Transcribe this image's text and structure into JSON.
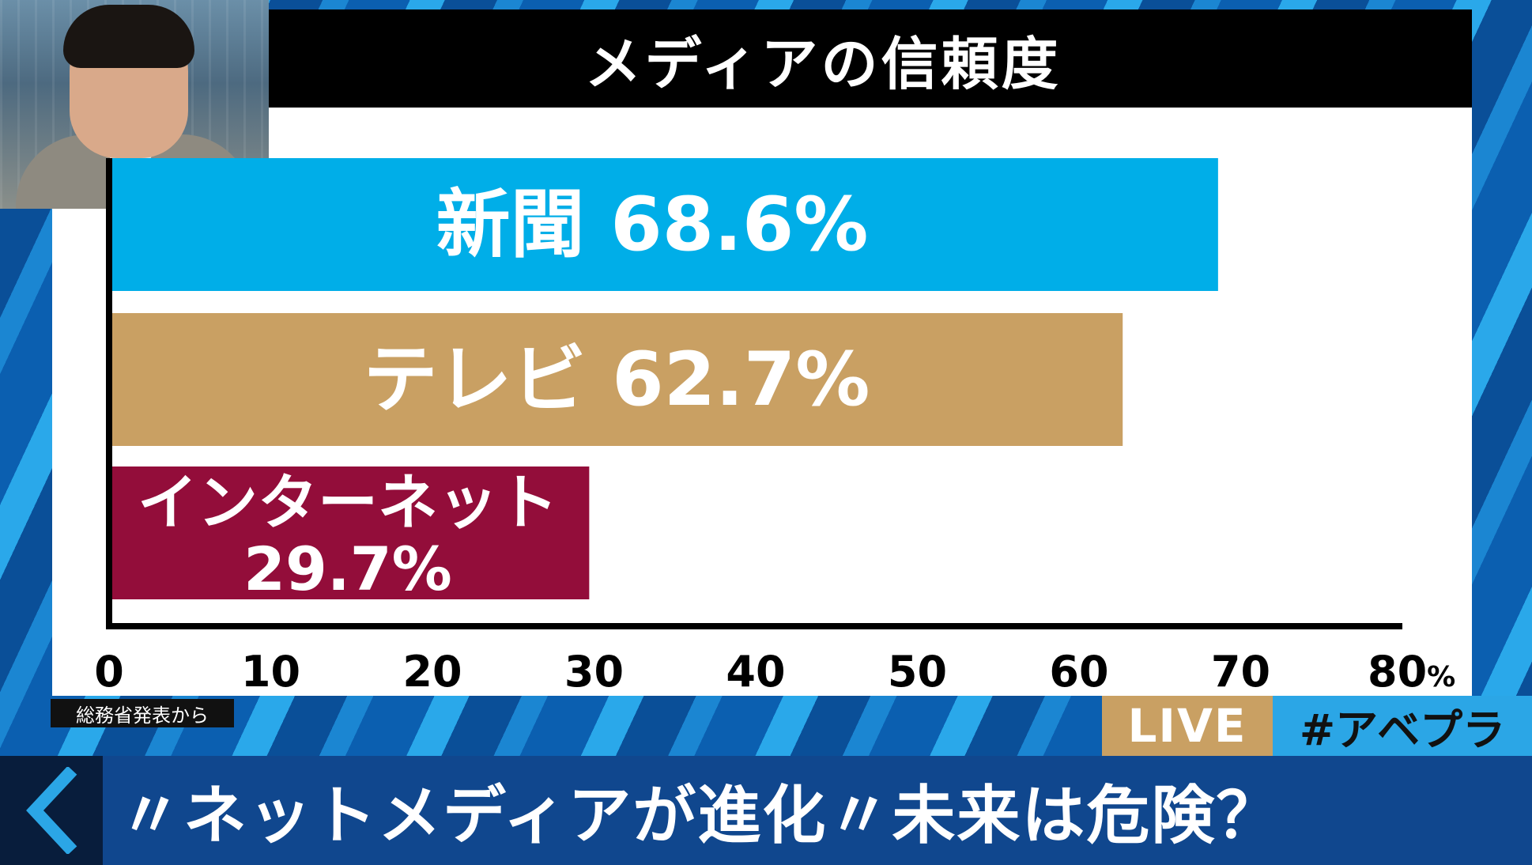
{
  "chart_data": {
    "type": "bar",
    "orientation": "horizontal",
    "title": "メディアの信頼度",
    "categories": [
      "新聞",
      "テレビ",
      "インターネット"
    ],
    "values": [
      68.6,
      62.7,
      29.7
    ],
    "value_labels": [
      "68.6%",
      "62.7%",
      "29.7%"
    ],
    "colors": [
      "#00aee8",
      "#c9a063",
      "#930d3a"
    ],
    "xlim": [
      0,
      80
    ],
    "xticks": [
      "0",
      "10",
      "20",
      "30",
      "40",
      "50",
      "60",
      "70",
      "80"
    ],
    "xunit": "%",
    "grid": false,
    "legend": "none"
  },
  "source": "総務省発表から",
  "badge": {
    "live": "LIVE",
    "hashtag": "#アベプラ"
  },
  "headline": "〃ネットメディアが進化〃未来は危険？",
  "colors": {
    "accent_blue": "#2ba6e6",
    "live_gold": "#c9a063",
    "bar_navy": "#10478e"
  }
}
